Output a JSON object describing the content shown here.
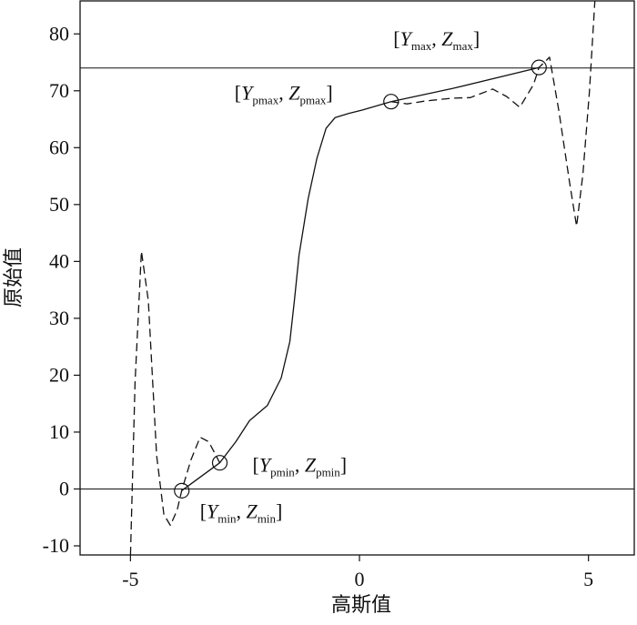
{
  "chart_data": {
    "type": "line",
    "xlabel": "高斯值",
    "ylabel": "原始值",
    "xlim": [
      -6.1,
      6.0
    ],
    "ylim": [
      -11.6,
      85.8
    ],
    "xticks": [
      -5,
      0,
      5
    ],
    "yticks": [
      -10,
      0,
      10,
      20,
      30,
      40,
      50,
      60,
      70,
      80
    ],
    "hlines": [
      0,
      74
    ],
    "color": "#111111",
    "series": [
      {
        "dash": false,
        "x": [
          -3.88,
          -3.05,
          -2.7,
          -2.4,
          -2.01,
          -1.71,
          -1.52,
          -1.42,
          -1.32,
          -1.12,
          -0.93,
          -0.73,
          -0.53,
          -0.24,
          0.06,
          0.69,
          2.03,
          3.92
        ],
        "values": [
          -0.3,
          4.6,
          8.3,
          12.0,
          14.7,
          19.5,
          25.9,
          33.1,
          41.1,
          51.0,
          58.1,
          63.4,
          65.3,
          66.0,
          66.6,
          68.1,
          70.4,
          74.1
        ]
      },
      {
        "dash": true,
        "x": [
          -5.0,
          -4.9,
          -4.76,
          -4.61,
          -4.43,
          -4.27,
          -4.13,
          -3.98,
          -3.88,
          -3.68,
          -3.48,
          -3.29,
          -3.05
        ],
        "values": [
          -11.6,
          18.7,
          41.8,
          33.1,
          5.9,
          -4.5,
          -6.4,
          -3.7,
          -0.3,
          5.1,
          9.1,
          8.3,
          4.6
        ]
      },
      {
        "dash": true,
        "x": [
          0.69,
          1.04,
          1.44,
          2.03,
          2.42,
          2.91,
          3.21,
          3.5,
          3.8,
          3.92,
          4.15,
          4.35,
          4.59,
          4.74,
          4.88,
          5.02,
          5.14
        ],
        "values": [
          68.1,
          67.7,
          68.2,
          68.7,
          68.8,
          70.3,
          69.0,
          67.1,
          71.1,
          74.1,
          75.9,
          66.6,
          53.8,
          46.2,
          55.4,
          69.8,
          85.8
        ]
      }
    ],
    "markers": [
      {
        "x": -3.88,
        "y": -0.3,
        "label": [
          {
            "text": "["
          },
          {
            "text": "Y",
            "italic": true
          },
          {
            "text": "min",
            "sub": true
          },
          {
            "text": ", "
          },
          {
            "text": "Z",
            "italic": true
          },
          {
            "text": "min",
            "sub": true
          },
          {
            "text": "]"
          }
        ]
      },
      {
        "x": -3.05,
        "y": 4.6,
        "label": [
          {
            "text": "["
          },
          {
            "text": "Y",
            "italic": true
          },
          {
            "text": "pmin",
            "sub": true
          },
          {
            "text": ", "
          },
          {
            "text": "Z",
            "italic": true
          },
          {
            "text": "pmin",
            "sub": true
          },
          {
            "text": "]"
          }
        ]
      },
      {
        "x": 0.69,
        "y": 68.1,
        "label": [
          {
            "text": "["
          },
          {
            "text": "Y",
            "italic": true
          },
          {
            "text": "pmax",
            "sub": true
          },
          {
            "text": ", "
          },
          {
            "text": "Z",
            "italic": true
          },
          {
            "text": "pmax",
            "sub": true
          },
          {
            "text": "]"
          }
        ]
      },
      {
        "x": 3.92,
        "y": 74.1,
        "label": [
          {
            "text": "["
          },
          {
            "text": "Y",
            "italic": true
          },
          {
            "text": "max",
            "sub": true
          },
          {
            "text": ", "
          },
          {
            "text": "Z",
            "italic": true
          },
          {
            "text": "max",
            "sub": true
          },
          {
            "text": "]"
          }
        ]
      }
    ]
  }
}
